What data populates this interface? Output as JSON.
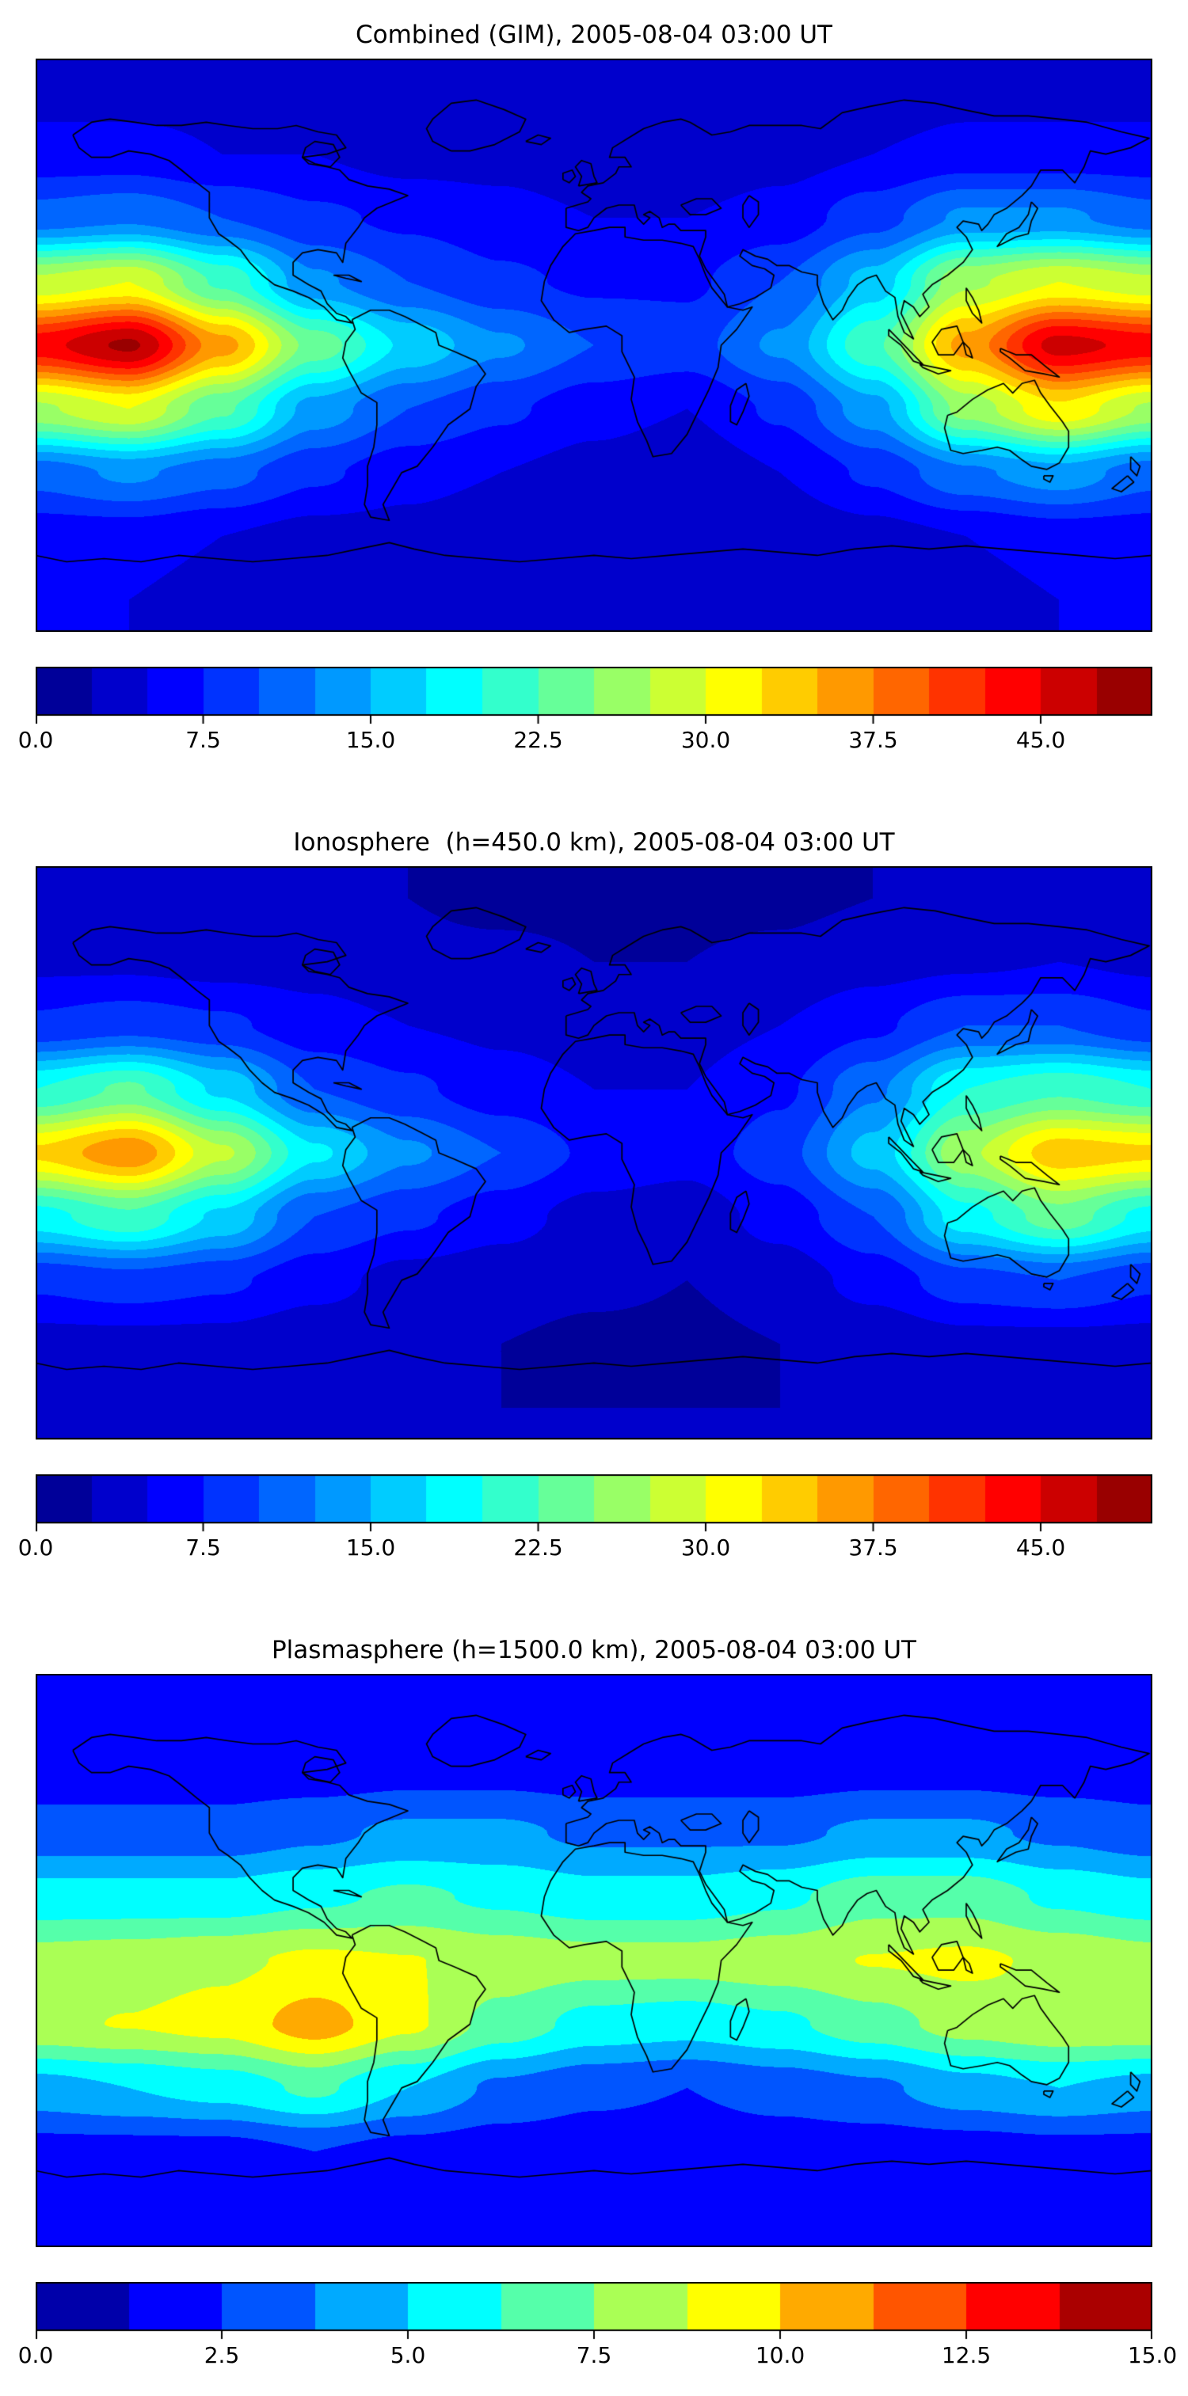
{
  "figure": {
    "background": "#ffffff",
    "coastline_color": "#000000",
    "panels": [
      {
        "id": "combined",
        "title": "Combined (GIM), 2005-08-04 03:00 UT",
        "colorbar": {
          "vmin": 0,
          "vmax": 50,
          "segments": 20,
          "ticks": [
            0,
            7.5,
            15,
            22.5,
            30,
            37.5,
            45
          ],
          "tick_labels": [
            "0.0",
            "7.5",
            "15.0",
            "22.5",
            "30.0",
            "37.5",
            "45.0"
          ]
        }
      },
      {
        "id": "ionosphere",
        "title": "Ionosphere  (h=450.0 km), 2005-08-04 03:00 UT",
        "colorbar": {
          "vmin": 0,
          "vmax": 50,
          "segments": 20,
          "ticks": [
            0,
            7.5,
            15,
            22.5,
            30,
            37.5,
            45
          ],
          "tick_labels": [
            "0.0",
            "7.5",
            "15.0",
            "22.5",
            "30.0",
            "37.5",
            "45.0"
          ]
        }
      },
      {
        "id": "plasmasphere",
        "title": "Plasmasphere (h=1500.0 km), 2005-08-04 03:00 UT",
        "colorbar": {
          "vmin": 0,
          "vmax": 15,
          "segments": 12,
          "ticks": [
            0,
            2.5,
            5,
            7.5,
            10,
            12.5,
            15
          ],
          "tick_labels": [
            "0.0",
            "2.5",
            "5.0",
            "7.5",
            "10.0",
            "12.5",
            "15.0"
          ]
        }
      }
    ]
  },
  "chart_data": [
    {
      "type": "heatmap",
      "title": "Combined (GIM), 2005-08-04 03:00 UT",
      "colormap": "jet",
      "projection": "equirectangular",
      "vmin": 0,
      "vmax": 50,
      "level_step": 2.5,
      "lon_range": [
        -180,
        180
      ],
      "lat_range": [
        -90,
        90
      ],
      "grid_lons": [
        -180,
        -150,
        -120,
        -90,
        -60,
        -30,
        0,
        30,
        60,
        90,
        120,
        150,
        180
      ],
      "grid_lats": [
        80,
        60,
        40,
        20,
        0,
        -20,
        -40,
        -60,
        -80
      ],
      "values": [
        [
          4,
          4,
          4,
          3,
          3,
          3,
          2.5,
          3,
          3,
          3,
          4,
          4,
          4
        ],
        [
          6,
          6,
          5,
          5,
          4,
          4,
          3,
          3,
          4,
          5,
          6,
          6,
          6
        ],
        [
          11,
          12,
          10,
          8,
          7,
          6,
          5,
          5,
          6,
          9,
          13,
          13,
          11
        ],
        [
          28,
          30,
          22,
          13,
          10,
          8,
          7,
          7,
          10,
          16,
          27,
          30,
          28
        ],
        [
          44,
          48,
          36,
          24,
          17,
          13,
          10,
          9,
          13,
          22,
          36,
          46,
          44
        ],
        [
          27,
          30,
          23,
          14,
          10,
          8,
          6,
          5,
          8,
          14,
          26,
          32,
          27
        ],
        [
          11,
          13,
          11,
          8,
          6,
          5,
          4,
          3,
          5,
          8,
          12,
          14,
          11
        ],
        [
          6,
          6,
          5,
          4,
          4,
          3,
          2.5,
          2.5,
          3,
          4,
          5,
          6,
          6
        ],
        [
          5,
          5,
          4,
          4,
          3,
          3,
          3,
          3,
          3,
          4,
          4,
          5,
          5
        ]
      ]
    },
    {
      "type": "heatmap",
      "title": "Ionosphere  (h=450.0 km), 2005-08-04 03:00 UT",
      "colormap": "jet",
      "projection": "equirectangular",
      "vmin": 0,
      "vmax": 50,
      "level_step": 2.5,
      "lon_range": [
        -180,
        180
      ],
      "lat_range": [
        -90,
        90
      ],
      "grid_lons": [
        -180,
        -150,
        -120,
        -90,
        -60,
        -30,
        0,
        30,
        60,
        90,
        120,
        150,
        180
      ],
      "grid_lats": [
        80,
        60,
        40,
        20,
        0,
        -20,
        -40,
        -60,
        -80
      ],
      "values": [
        [
          3,
          3,
          3,
          2.5,
          2.5,
          2,
          2,
          2,
          2,
          2.5,
          3,
          3,
          3
        ],
        [
          4.5,
          4.5,
          4,
          4,
          3,
          3,
          2.5,
          2.5,
          3,
          4,
          4.5,
          5,
          4.5
        ],
        [
          8,
          9,
          8,
          6,
          5,
          4.5,
          4,
          4,
          5,
          7,
          10,
          10,
          8
        ],
        [
          20,
          23,
          17,
          10,
          8,
          6,
          5,
          5,
          7,
          12,
          20,
          22,
          20
        ],
        [
          33,
          37,
          28,
          18,
          13,
          10,
          7,
          6,
          9,
          16,
          27,
          34,
          33
        ],
        [
          19,
          22,
          17,
          10,
          8,
          6,
          4,
          3.5,
          6,
          10,
          19,
          24,
          19
        ],
        [
          8,
          9,
          8,
          6,
          4,
          3.5,
          3,
          2.5,
          3.5,
          6,
          9,
          10,
          8
        ],
        [
          4,
          4,
          4,
          3,
          3,
          2.5,
          2,
          2,
          2.5,
          3,
          4,
          4,
          4
        ],
        [
          3,
          3,
          3,
          3,
          2.5,
          2.5,
          2.5,
          2.5,
          2.5,
          3,
          3,
          3,
          3
        ]
      ]
    },
    {
      "type": "heatmap",
      "title": "Plasmasphere (h=1500.0 km), 2005-08-04 03:00 UT",
      "colormap": "jet",
      "projection": "equirectangular",
      "vmin": 0,
      "vmax": 15,
      "level_step": 1.25,
      "lon_range": [
        -180,
        180
      ],
      "lat_range": [
        -90,
        90
      ],
      "grid_lons": [
        -180,
        -150,
        -120,
        -90,
        -60,
        -30,
        0,
        30,
        60,
        90,
        120,
        150,
        180
      ],
      "grid_lats": [
        80,
        60,
        40,
        20,
        0,
        -20,
        -40,
        -60,
        -80
      ],
      "values": [
        [
          1.8,
          1.8,
          1.8,
          1.8,
          1.8,
          1.8,
          1.8,
          1.8,
          1.8,
          1.8,
          1.8,
          1.8,
          1.8
        ],
        [
          1.8,
          1.8,
          1.8,
          1.8,
          2,
          2,
          1.8,
          1.8,
          1.8,
          2,
          2,
          1.8,
          1.8
        ],
        [
          3,
          3,
          3,
          3.5,
          4,
          4,
          3.5,
          3.5,
          3.5,
          4,
          4,
          3.5,
          3
        ],
        [
          5.5,
          5.5,
          5.5,
          6,
          6.5,
          6,
          5.5,
          5.5,
          6,
          7,
          7,
          6,
          5.5
        ],
        [
          8,
          8.2,
          8.5,
          9,
          8.8,
          8.3,
          8,
          8,
          8.3,
          8.8,
          9,
          8.5,
          8
        ],
        [
          8.5,
          8.8,
          9.2,
          10.6,
          9,
          7,
          5.8,
          5.5,
          6,
          7,
          8,
          8.5,
          8.5
        ],
        [
          4.5,
          5,
          5.5,
          6.5,
          5,
          3.5,
          2.8,
          2.5,
          3,
          3.5,
          4.5,
          5,
          4.5
        ],
        [
          2,
          2,
          2,
          2.5,
          2,
          1.8,
          1.8,
          1.8,
          1.8,
          1.8,
          1.8,
          2,
          2
        ],
        [
          1.8,
          1.8,
          1.8,
          1.8,
          1.8,
          1.8,
          1.8,
          1.8,
          1.8,
          1.8,
          1.8,
          1.8,
          1.8
        ]
      ]
    }
  ]
}
